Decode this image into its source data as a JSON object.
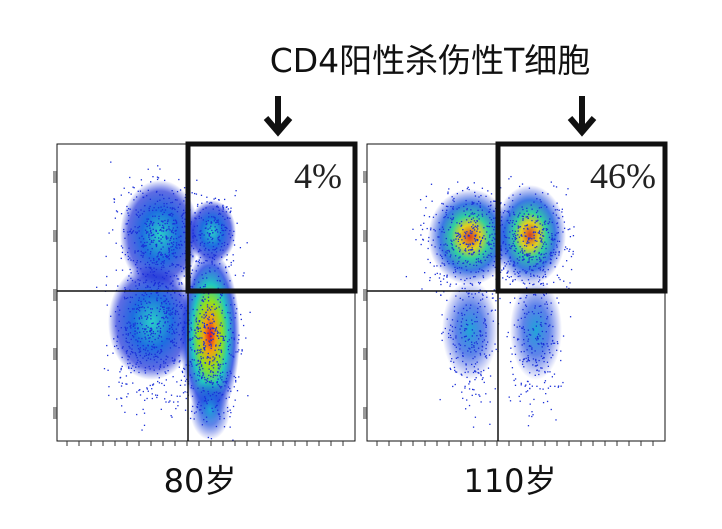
{
  "title": "CD4阳性杀伤性T细胞",
  "panels": [
    {
      "gate_label": "4%",
      "label": "80岁"
    },
    {
      "gate_label": "46%",
      "label": "110岁"
    }
  ]
}
